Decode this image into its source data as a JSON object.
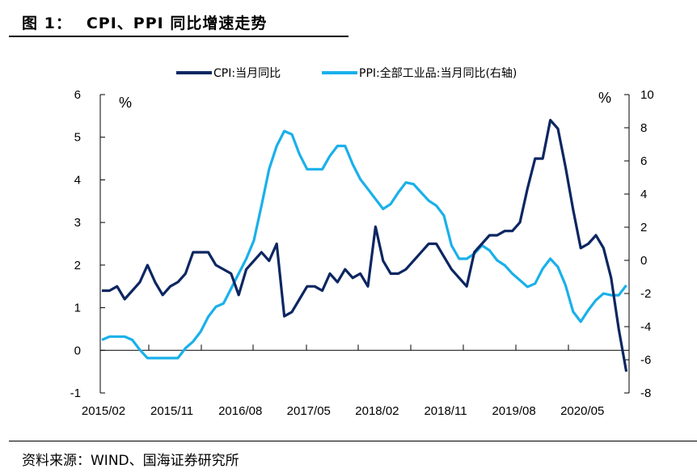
{
  "title": {
    "figure_no": "图 1：",
    "text": "CPI、PPI 同比增速走势"
  },
  "source": "资料来源：WIND、国海证券研究所",
  "colors": {
    "cpi": "#0c2661",
    "ppi": "#1ab0ea",
    "axis": "#000000"
  },
  "chart_data": {
    "type": "line",
    "title": "CPI、PPI 同比增速走势",
    "xlabel": "",
    "ylabel": "%",
    "y2label": "%",
    "ylim": [
      -1,
      6
    ],
    "y2lim": [
      -8,
      10
    ],
    "yticks": [
      -1,
      0,
      1,
      2,
      3,
      4,
      5,
      6
    ],
    "y2ticks": [
      -8,
      -6,
      -4,
      -2,
      0,
      2,
      4,
      6,
      8,
      10
    ],
    "xtick_labels": [
      "2015/02",
      "2015/11",
      "2016/08",
      "2017/05",
      "2018/02",
      "2018/11",
      "2019/08",
      "2020/05"
    ],
    "legend_position": "top-center",
    "x": [
      "2015/02",
      "2015/03",
      "2015/04",
      "2015/05",
      "2015/06",
      "2015/07",
      "2015/08",
      "2015/09",
      "2015/10",
      "2015/11",
      "2015/12",
      "2016/01",
      "2016/02",
      "2016/03",
      "2016/04",
      "2016/05",
      "2016/06",
      "2016/07",
      "2016/08",
      "2016/09",
      "2016/10",
      "2016/11",
      "2016/12",
      "2017/01",
      "2017/02",
      "2017/03",
      "2017/04",
      "2017/05",
      "2017/06",
      "2017/07",
      "2017/08",
      "2017/09",
      "2017/10",
      "2017/11",
      "2017/12",
      "2018/01",
      "2018/02",
      "2018/03",
      "2018/04",
      "2018/05",
      "2018/06",
      "2018/07",
      "2018/08",
      "2018/09",
      "2018/10",
      "2018/11",
      "2018/12",
      "2019/01",
      "2019/02",
      "2019/03",
      "2019/04",
      "2019/05",
      "2019/06",
      "2019/07",
      "2019/08",
      "2019/09",
      "2019/10",
      "2019/11",
      "2019/12",
      "2020/01",
      "2020/02",
      "2020/03",
      "2020/04",
      "2020/05",
      "2020/06",
      "2020/07",
      "2020/08",
      "2020/09",
      "2020/10",
      "2020/11"
    ],
    "series": [
      {
        "name": "CPI:当月同比",
        "axis": "left",
        "values": [
          1.4,
          1.4,
          1.5,
          1.2,
          1.4,
          1.6,
          2.0,
          1.6,
          1.3,
          1.5,
          1.6,
          1.8,
          2.3,
          2.3,
          2.3,
          2.0,
          1.9,
          1.8,
          1.3,
          1.9,
          2.1,
          2.3,
          2.1,
          2.5,
          0.8,
          0.9,
          1.2,
          1.5,
          1.5,
          1.4,
          1.8,
          1.6,
          1.9,
          1.7,
          1.8,
          1.5,
          2.9,
          2.1,
          1.8,
          1.8,
          1.9,
          2.1,
          2.3,
          2.5,
          2.5,
          2.2,
          1.9,
          1.7,
          1.5,
          2.3,
          2.5,
          2.7,
          2.7,
          2.8,
          2.8,
          3.0,
          3.8,
          4.5,
          4.5,
          5.4,
          5.2,
          4.3,
          3.3,
          2.4,
          2.5,
          2.7,
          2.4,
          1.7,
          0.5,
          -0.5
        ]
      },
      {
        "name": "PPI:全部工业品:当月同比(右轴)",
        "axis": "right",
        "values": [
          -4.8,
          -4.6,
          -4.6,
          -4.6,
          -4.8,
          -5.4,
          -5.9,
          -5.9,
          -5.9,
          -5.9,
          -5.9,
          -5.3,
          -4.9,
          -4.3,
          -3.4,
          -2.8,
          -2.6,
          -1.7,
          -0.8,
          0.1,
          1.2,
          3.3,
          5.5,
          6.9,
          7.8,
          7.6,
          6.4,
          5.5,
          5.5,
          5.5,
          6.3,
          6.9,
          6.9,
          5.8,
          4.9,
          4.3,
          3.7,
          3.1,
          3.4,
          4.1,
          4.7,
          4.6,
          4.1,
          3.6,
          3.3,
          2.7,
          0.9,
          0.1,
          0.1,
          0.4,
          0.9,
          0.6,
          0.0,
          -0.3,
          -0.8,
          -1.2,
          -1.6,
          -1.4,
          -0.5,
          0.1,
          -0.4,
          -1.5,
          -3.1,
          -3.7,
          -3.0,
          -2.4,
          -2.0,
          -2.1,
          -2.1,
          -1.5
        ]
      }
    ]
  }
}
